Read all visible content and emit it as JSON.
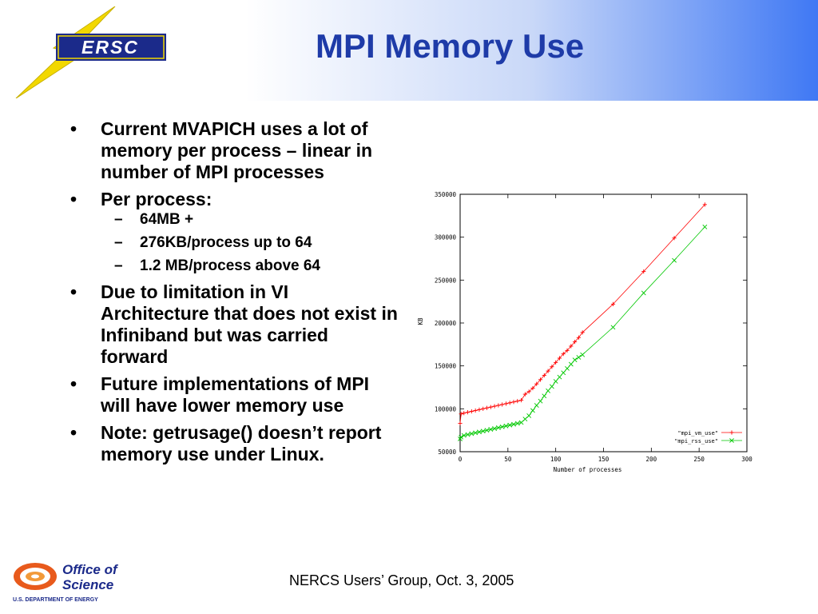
{
  "title": "MPI Memory Use",
  "logo_text": "ERSC",
  "footer": "NERCS Users’ Group, Oct. 3, 2005",
  "office_logo": {
    "line1": "Office of",
    "line2": "Science",
    "line3": "U.S. DEPARTMENT OF ENERGY"
  },
  "bullets": [
    {
      "text": "Current MVAPICH uses a lot of memory per process – linear in number of MPI processes",
      "sub": []
    },
    {
      "text": "Per process:",
      "sub": [
        "64MB +",
        "276KB/process up to 64",
        "1.2 MB/process above 64"
      ]
    },
    {
      "text": "Due to limitation in VI Architecture that does not exist in Infiniband but was carried forward",
      "sub": []
    },
    {
      "text": "Future implementations of MPI will have lower memory use",
      "sub": []
    },
    {
      "text": "Note: getrusage() doesn’t report memory use under Linux.",
      "sub": []
    }
  ],
  "colors": {
    "title": "#1e3ba8",
    "vm_series": "#ff0000",
    "rss_series": "#00c800"
  },
  "chart_data": {
    "type": "line",
    "xlabel": "Number of processes",
    "ylabel": "KB",
    "xlim": [
      0,
      300
    ],
    "ylim": [
      50000,
      350000
    ],
    "x_ticks": [
      "0",
      "50",
      "100",
      "150",
      "200",
      "250",
      "300"
    ],
    "y_ticks": [
      "50000",
      "100000",
      "150000",
      "200000",
      "250000",
      "300000",
      "350000"
    ],
    "legend_position": "bottom-right",
    "grid": false,
    "series": [
      {
        "name": "\"mpi_vm_use\"",
        "marker": "+",
        "color": "#ff0000",
        "points": [
          [
            0,
            83000
          ],
          [
            1,
            94000
          ],
          [
            4,
            95000
          ],
          [
            8,
            96000
          ],
          [
            12,
            97000
          ],
          [
            16,
            98000
          ],
          [
            20,
            99000
          ],
          [
            24,
            100000
          ],
          [
            28,
            101000
          ],
          [
            32,
            102000
          ],
          [
            36,
            103000
          ],
          [
            40,
            104000
          ],
          [
            44,
            105000
          ],
          [
            48,
            106000
          ],
          [
            52,
            107000
          ],
          [
            56,
            108000
          ],
          [
            60,
            109000
          ],
          [
            64,
            110000
          ],
          [
            68,
            117000
          ],
          [
            72,
            120000
          ],
          [
            76,
            124000
          ],
          [
            80,
            129000
          ],
          [
            84,
            134000
          ],
          [
            88,
            139000
          ],
          [
            92,
            144000
          ],
          [
            96,
            149000
          ],
          [
            100,
            154000
          ],
          [
            104,
            159000
          ],
          [
            108,
            164000
          ],
          [
            112,
            168000
          ],
          [
            116,
            173000
          ],
          [
            120,
            178000
          ],
          [
            124,
            183000
          ],
          [
            128,
            189000
          ],
          [
            160,
            222000
          ],
          [
            192,
            260000
          ],
          [
            224,
            299000
          ],
          [
            256,
            338000
          ]
        ]
      },
      {
        "name": "\"mpi_rss_use\"",
        "marker": "x",
        "color": "#00c800",
        "points": [
          [
            0,
            65000
          ],
          [
            1,
            67000
          ],
          [
            4,
            69000
          ],
          [
            8,
            70000
          ],
          [
            12,
            71000
          ],
          [
            16,
            72000
          ],
          [
            20,
            73000
          ],
          [
            24,
            74000
          ],
          [
            28,
            75000
          ],
          [
            32,
            76000
          ],
          [
            36,
            77000
          ],
          [
            40,
            78000
          ],
          [
            44,
            79000
          ],
          [
            48,
            80000
          ],
          [
            52,
            81000
          ],
          [
            56,
            82000
          ],
          [
            60,
            83000
          ],
          [
            64,
            84000
          ],
          [
            68,
            88000
          ],
          [
            72,
            92000
          ],
          [
            76,
            98000
          ],
          [
            80,
            104000
          ],
          [
            84,
            109000
          ],
          [
            88,
            115000
          ],
          [
            92,
            121000
          ],
          [
            96,
            126000
          ],
          [
            100,
            132000
          ],
          [
            104,
            137000
          ],
          [
            108,
            142000
          ],
          [
            112,
            147000
          ],
          [
            116,
            152000
          ],
          [
            120,
            157000
          ],
          [
            124,
            160000
          ],
          [
            128,
            163000
          ],
          [
            160,
            195000
          ],
          [
            192,
            235000
          ],
          [
            224,
            273000
          ],
          [
            256,
            312000
          ]
        ]
      }
    ]
  }
}
